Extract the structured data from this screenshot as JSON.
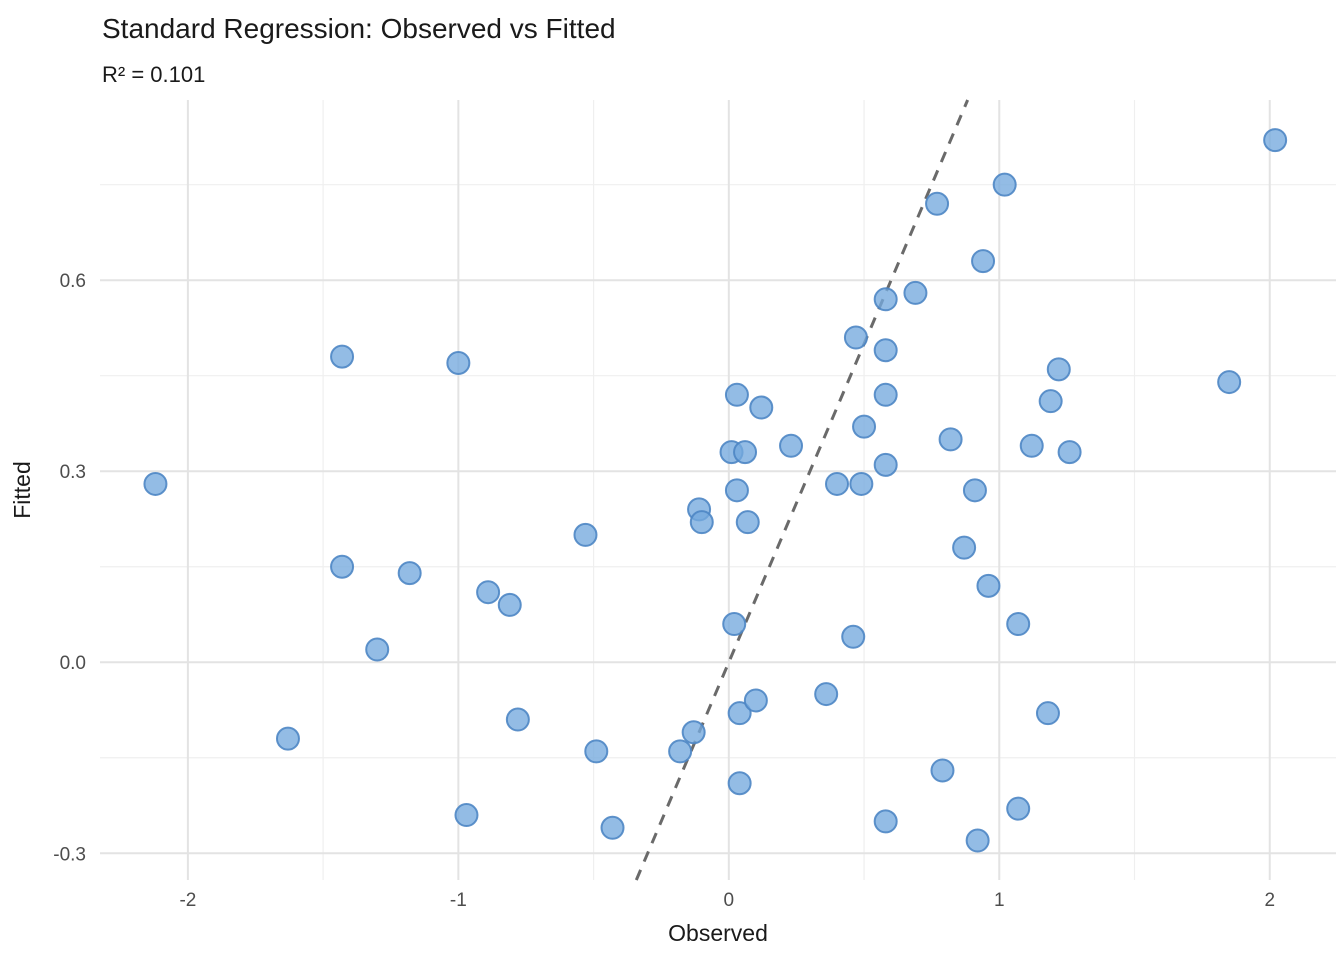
{
  "header": {
    "title": "Standard Regression: Observed vs Fitted",
    "subtitle": "R² = 0.101"
  },
  "chart_data": {
    "type": "scatter",
    "title": "Standard Regression: Observed vs Fitted",
    "subtitle": "R² = 0.101",
    "xlabel": "Observed",
    "ylabel": "Fitted",
    "legend_position": "none",
    "grid": true,
    "x_axis": {
      "label": "Observed",
      "ticks": [
        -2,
        -1,
        0,
        1,
        2
      ],
      "tick_labels": [
        "-2",
        "-1",
        "0",
        "1",
        "2"
      ],
      "minor_ticks": [
        -1.5,
        -0.5,
        0.5,
        1.5
      ],
      "range": [
        -2.325,
        2.245
      ]
    },
    "y_axis": {
      "label": "Fitted",
      "ticks": [
        -0.3,
        0.0,
        0.3,
        0.6
      ],
      "tick_labels": [
        "-0.3",
        "0.0",
        "0.3",
        "0.6"
      ],
      "minor_ticks": [
        -0.15,
        0.15,
        0.45,
        0.75
      ],
      "range": [
        -0.342,
        0.883
      ]
    },
    "reference_line": {
      "style": "dashed",
      "equation": "y = x",
      "from": [
        -0.342,
        -0.342
      ],
      "to": [
        0.883,
        0.883
      ]
    },
    "points": [
      [
        -2.12,
        0.28
      ],
      [
        -1.63,
        -0.12
      ],
      [
        -1.43,
        0.48
      ],
      [
        -1.43,
        0.15
      ],
      [
        -1.3,
        0.02
      ],
      [
        -1.18,
        0.14
      ],
      [
        -1.0,
        0.47
      ],
      [
        -0.97,
        -0.24
      ],
      [
        -0.89,
        0.11
      ],
      [
        -0.81,
        0.09
      ],
      [
        -0.78,
        -0.09
      ],
      [
        -0.53,
        0.2
      ],
      [
        -0.49,
        -0.14
      ],
      [
        -0.43,
        -0.26
      ],
      [
        -0.18,
        -0.14
      ],
      [
        -0.13,
        -0.11
      ],
      [
        -0.11,
        0.24
      ],
      [
        -0.1,
        0.22
      ],
      [
        0.01,
        0.33
      ],
      [
        0.02,
        0.06
      ],
      [
        0.03,
        0.42
      ],
      [
        0.03,
        0.27
      ],
      [
        0.04,
        -0.08
      ],
      [
        0.04,
        -0.19
      ],
      [
        0.06,
        0.33
      ],
      [
        0.07,
        0.22
      ],
      [
        0.1,
        -0.06
      ],
      [
        0.12,
        0.4
      ],
      [
        0.23,
        0.34
      ],
      [
        0.36,
        -0.05
      ],
      [
        0.4,
        0.28
      ],
      [
        0.46,
        0.04
      ],
      [
        0.47,
        0.51
      ],
      [
        0.49,
        0.28
      ],
      [
        0.5,
        0.37
      ],
      [
        0.58,
        0.57
      ],
      [
        0.58,
        0.49
      ],
      [
        0.58,
        0.42
      ],
      [
        0.58,
        0.31
      ],
      [
        0.58,
        -0.25
      ],
      [
        0.69,
        0.58
      ],
      [
        0.77,
        0.72
      ],
      [
        0.79,
        -0.17
      ],
      [
        0.82,
        0.35
      ],
      [
        0.87,
        0.18
      ],
      [
        0.91,
        0.27
      ],
      [
        0.92,
        -0.28
      ],
      [
        0.94,
        0.63
      ],
      [
        0.96,
        0.12
      ],
      [
        1.02,
        0.75
      ],
      [
        1.07,
        0.06
      ],
      [
        1.07,
        -0.23
      ],
      [
        1.12,
        0.34
      ],
      [
        1.18,
        -0.08
      ],
      [
        1.19,
        0.41
      ],
      [
        1.22,
        0.46
      ],
      [
        1.26,
        0.33
      ],
      [
        1.85,
        0.44
      ],
      [
        2.02,
        0.82
      ]
    ],
    "colors": {
      "point_fill": "#74a9de",
      "point_stroke": "#4e86c4",
      "grid_major": "#e3e3e3",
      "grid_minor": "#efefef",
      "reference_line": "#6a6a6a",
      "tick_text": "#4d4d4d",
      "title_text": "#1a1a1a",
      "background": "#ffffff"
    }
  }
}
